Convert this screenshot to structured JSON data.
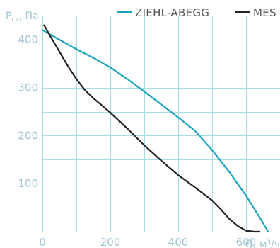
{
  "chart_data": {
    "type": "line",
    "title": "",
    "xlabel": "Q, м³/ч",
    "ylabel": "Pст, Па",
    "ylabel_main": "P",
    "ylabel_sub": "ст",
    "ylabel_unit": ", Па",
    "xlim": [
      0,
      700
    ],
    "ylim": [
      0,
      450
    ],
    "xticks": [
      0,
      200,
      400,
      600
    ],
    "yticks": [
      100,
      200,
      300,
      400
    ],
    "grid": true,
    "legend_position": "top-right",
    "series": [
      {
        "name": "ZIEHL-ABEGG",
        "color": "#1aa3bf",
        "x": [
          0,
          50,
          100,
          150,
          200,
          250,
          300,
          350,
          400,
          450,
          500,
          550,
          600,
          640,
          665
        ],
        "y": [
          420,
          400,
          380,
          362,
          342,
          318,
          292,
          265,
          238,
          210,
          170,
          125,
          75,
          30,
          0
        ]
      },
      {
        "name": "MES",
        "color": "#222222",
        "x": [
          5,
          25,
          50,
          75,
          100,
          125,
          150,
          175,
          200,
          250,
          300,
          350,
          400,
          450,
          500,
          525,
          550,
          575,
          600,
          625,
          640
        ],
        "y": [
          430,
          405,
          375,
          345,
          318,
          295,
          278,
          263,
          248,
          215,
          180,
          148,
          118,
          92,
          65,
          47,
          27,
          12,
          2,
          0,
          0
        ]
      }
    ]
  }
}
